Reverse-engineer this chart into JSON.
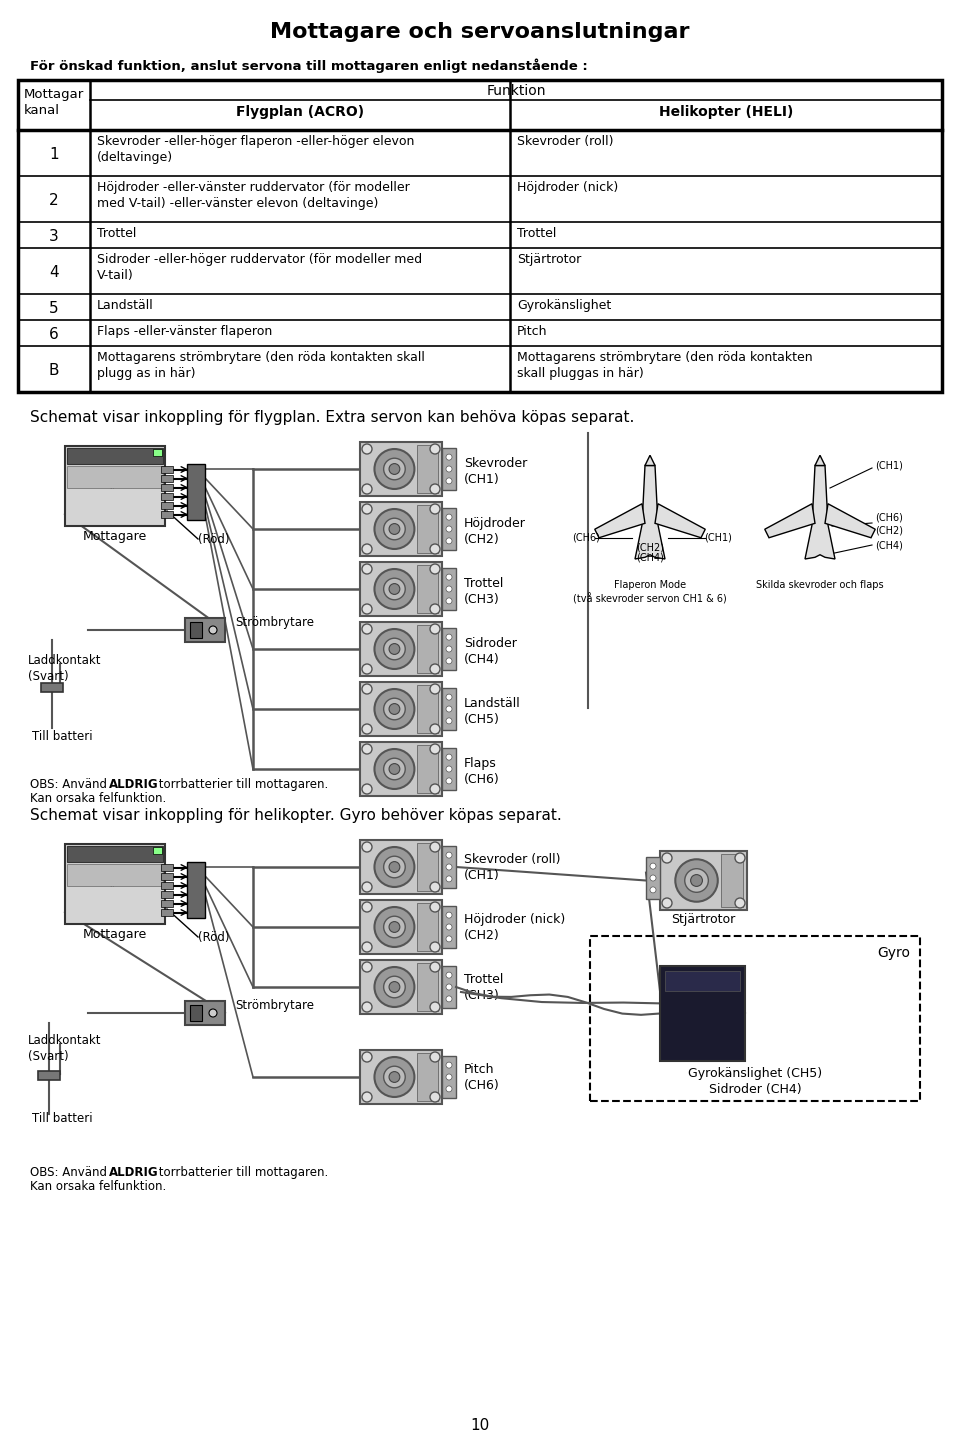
{
  "title": "Mottagare och servoanslutningar",
  "subtitle": "För önskad funktion, anslut servona till mottagaren enligt nedanstående :",
  "col_header_funktion": "Funktion",
  "col_header_acro": "Flygplan (ACRO)",
  "col_header_heli": "Helikopter (HELI)",
  "table_rows": [
    {
      "ch": "1",
      "acro": "Skevroder -eller-höger flaperon -eller-höger elevon\n(deltavinge)",
      "heli": "Skevroder (roll)"
    },
    {
      "ch": "2",
      "acro": "Höjdroder -eller-vänster ruddervator (för modeller\nmed V-tail) -eller-vänster elevon (deltavinge)",
      "heli": "Höjdroder (nick)"
    },
    {
      "ch": "3",
      "acro": "Trottel",
      "heli": "Trottel"
    },
    {
      "ch": "4",
      "acro": "Sidroder -eller-höger ruddervator (för modeller med\nV-tail)",
      "heli": "Stjärtrotor"
    },
    {
      "ch": "5",
      "acro": "Landställ",
      "heli": "Gyrokänslighet"
    },
    {
      "ch": "6",
      "acro": "Flaps -eller-vänster flaperon",
      "heli": "Pitch"
    },
    {
      "ch": "B",
      "acro": "Mottagarens strömbrytare (den röda kontakten skall\nplugg as in här)",
      "heli": "Mottagarens strömbrytare (den röda kontakten\nskall pluggas in här)"
    }
  ],
  "section1_title": "Schemat visar inkoppling för flygplan. Extra servon kan behöva köpas separat.",
  "section1_channels": [
    "Skevroder\n(CH1)",
    "Höjdroder\n(CH2)",
    "Trottel\n(CH3)",
    "Sidroder\n(CH4)",
    "Landställ\n(CH5)",
    "Flaps\n(CH6)"
  ],
  "section2_title": "Schemat visar inkoppling för helikopter. Gyro behöver köpas separat.",
  "section2_channels": [
    "Skevroder (roll)\n(CH1)",
    "Höjdroder (nick)\n(CH2)",
    "Trottel\n(CH3)",
    "Pitch\n(CH6)"
  ],
  "page_number": "10",
  "bg_color": "#ffffff"
}
